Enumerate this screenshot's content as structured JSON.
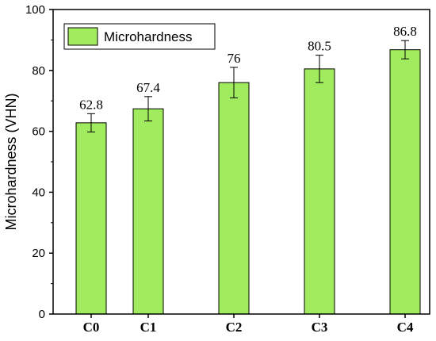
{
  "chart_data": {
    "type": "bar",
    "categories": [
      "C0",
      "C1",
      "C2",
      "C3",
      "C4"
    ],
    "x_positions": [
      0,
      1,
      2.5,
      4,
      5.5
    ],
    "values": [
      62.8,
      67.4,
      76,
      80.5,
      86.8
    ],
    "errors": [
      3,
      4,
      5,
      4.5,
      3
    ],
    "data_labels": [
      "62.8",
      "67.4",
      "76",
      "80.5",
      "86.8"
    ],
    "title": "",
    "xlabel": "",
    "ylabel": "Microhardness (VHN)",
    "ylim": [
      0,
      100
    ],
    "yticks": [
      0,
      20,
      40,
      60,
      80,
      100
    ],
    "grid": false,
    "legend": {
      "entries": [
        "Microhardness"
      ],
      "position": "top-left"
    },
    "bar_color": "#a0eb5e",
    "bar_edge_color": "#000000"
  }
}
